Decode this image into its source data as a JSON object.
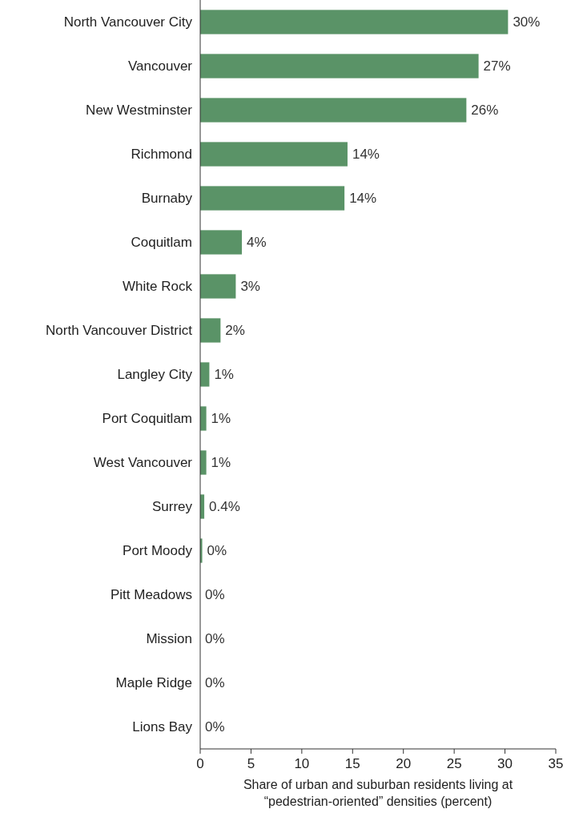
{
  "chart_data": {
    "type": "bar",
    "orientation": "horizontal",
    "xlabel": "Share of urban and suburban residents living at “pedestrian-oriented” densities (percent)",
    "categories": [
      "North Vancouver City",
      "Vancouver",
      "New Westminster",
      "Richmond",
      "Burnaby",
      "Coquitlam",
      "White Rock",
      "North Vancouver District",
      "Langley City",
      "Port Coquitlam",
      "West Vancouver",
      "Surrey",
      "Port Moody",
      "Pitt Meadows",
      "Mission",
      "Maple Ridge",
      "Lions Bay"
    ],
    "values": [
      30.3,
      27.4,
      26.2,
      14.5,
      14.2,
      4.1,
      3.5,
      2.0,
      0.9,
      0.6,
      0.6,
      0.4,
      0.2,
      0,
      0,
      0,
      0
    ],
    "value_labels": [
      "30%",
      "27%",
      "26%",
      "14%",
      "14%",
      "4%",
      "3%",
      "2%",
      "1%",
      "1%",
      "1%",
      "0.4%",
      "0%",
      "0%",
      "0%",
      "0%",
      "0%"
    ],
    "color": "#5a9367",
    "xlim": [
      0,
      35
    ],
    "xticks": [
      0,
      5,
      10,
      15,
      20,
      25,
      30,
      35
    ],
    "grid": false
  }
}
